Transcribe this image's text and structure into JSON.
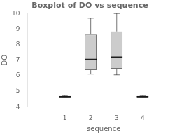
{
  "chart_data": {
    "type": "box",
    "title": "Boxplot of DO vs sequence",
    "xlabel": "sequence",
    "ylabel": "DO",
    "x": [
      1,
      2,
      3,
      4
    ],
    "whislo": [
      4.58,
      6.1,
      6.05,
      4.58
    ],
    "q1": [
      4.6,
      6.35,
      6.45,
      4.6
    ],
    "med": [
      4.65,
      7.05,
      7.2,
      4.65
    ],
    "q3": [
      4.7,
      8.65,
      8.85,
      4.7
    ],
    "whishi": [
      4.72,
      9.7,
      10.0,
      4.72
    ],
    "xlim": [
      0.3,
      4.7
    ],
    "xticks": [
      1,
      2,
      3,
      4
    ],
    "ylim": [
      4,
      10
    ],
    "yticks": [
      4,
      5,
      6,
      7,
      8,
      9,
      10
    ],
    "grid": false,
    "color": "#cccccc"
  }
}
